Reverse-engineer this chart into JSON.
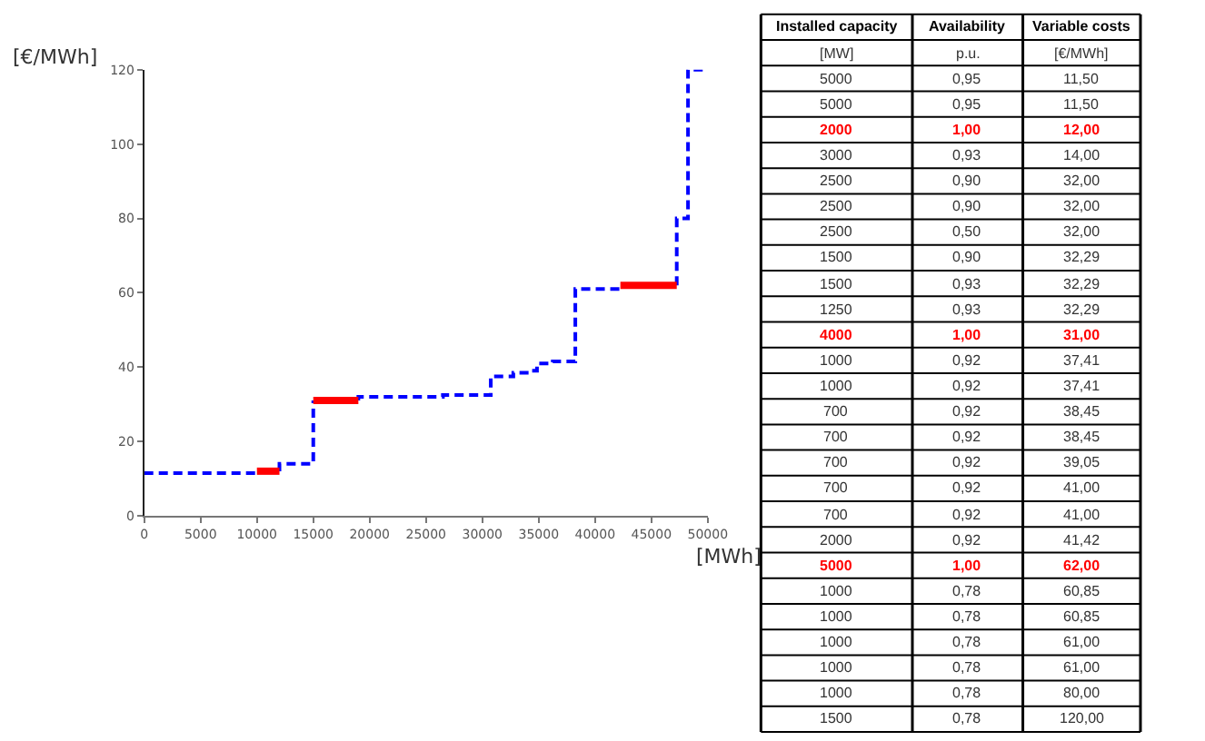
{
  "chart_data": [
    {
      "type": "step",
      "xlabel": "[MWh]",
      "ylabel": "[€/MWh]",
      "series": [
        {
          "type": "step",
          "color": "#0000ff",
          "line_style": "dashed",
          "x": [
            0,
            10000,
            11000,
            12000,
            12000,
            15000,
            17000,
            19000,
            19000,
            26500,
            30750,
            32750,
            34150,
            34850,
            36250,
            38250,
            40250,
            42250,
            45000,
            47250,
            47250,
            48250,
            49750
          ],
          "values": [
            11.5,
            12,
            null,
            12,
            14,
            31,
            null,
            31,
            32,
            32.5,
            37.5,
            38.5,
            39,
            41,
            41.5,
            61,
            61,
            62,
            null,
            62,
            80,
            120,
            120
          ]
        },
        {
          "type": "line",
          "color": "#ff0000",
          "line_style": "solid",
          "x": [
            10000,
            12000,
            13000,
            15000,
            19000,
            30000,
            42250,
            47250
          ],
          "values": [
            12,
            12,
            null,
            31,
            31,
            null,
            62,
            62
          ]
        }
      ],
      "xlim": [
        0,
        50000
      ],
      "xticks": [
        0,
        5000,
        10000,
        15000,
        20000,
        25000,
        30000,
        35000,
        40000,
        45000,
        50000
      ],
      "ylim": [
        0,
        120
      ],
      "yticks": [
        0,
        20,
        40,
        60,
        80,
        100,
        120
      ],
      "marker": "none"
    },
    {
      "type": "other",
      "cell_labels": [
        [
          "Installed capacity",
          "Availability",
          "Variable costs"
        ],
        [
          "[MW]",
          "p.u.",
          "[€/MWh]"
        ],
        [
          "5000",
          "0,95",
          "11,50"
        ],
        [
          "5000",
          "0,95",
          "11,50"
        ],
        [
          "2000",
          "1,00",
          "12,00"
        ],
        [
          "3000",
          "0,93",
          "14,00"
        ],
        [
          "2500",
          "0,90",
          "32,00"
        ],
        [
          "2500",
          "0,90",
          "32,00"
        ],
        [
          "2500",
          "0,50",
          "32,00"
        ],
        [
          "1500",
          "0,90",
          "32,29"
        ],
        [
          "1500",
          "0,93",
          "32,29"
        ],
        [
          "1250",
          "0,93",
          "32,29"
        ],
        [
          "4000",
          "1,00",
          "31,00"
        ],
        [
          "1000",
          "0,92",
          "37,41"
        ],
        [
          "1000",
          "0,92",
          "37,41"
        ],
        [
          "700",
          "0,92",
          "38,45"
        ],
        [
          "700",
          "0,92",
          "38,45"
        ],
        [
          "700",
          "0,92",
          "39,05"
        ],
        [
          "700",
          "0,92",
          "41,00"
        ],
        [
          "700",
          "0,92",
          "41,00"
        ],
        [
          "2000",
          "0,92",
          "41,42"
        ],
        [
          "5000",
          "1,00",
          "62,00"
        ],
        [
          "1000",
          "0,78",
          "60,85"
        ],
        [
          "1000",
          "0,78",
          "60,85"
        ],
        [
          "1000",
          "0,78",
          "61,00"
        ],
        [
          "1000",
          "0,78",
          "61,00"
        ],
        [
          "1000",
          "0,78",
          "80,00"
        ],
        [
          "1500",
          "0,78",
          "120,00"
        ]
      ],
      "colors": [
        "#000000",
        "#333333",
        "#333333",
        "#333333",
        "#ff0000",
        "#333333",
        "#333333",
        "#333333",
        "#333333",
        "#333333",
        "#333333",
        "#333333",
        "#ff0000",
        "#333333",
        "#333333",
        "#333333",
        "#333333",
        "#333333",
        "#333333",
        "#333333",
        "#333333",
        "#ff0000",
        "#333333",
        "#333333",
        "#333333",
        "#333333",
        "#333333",
        "#333333"
      ]
    }
  ]
}
